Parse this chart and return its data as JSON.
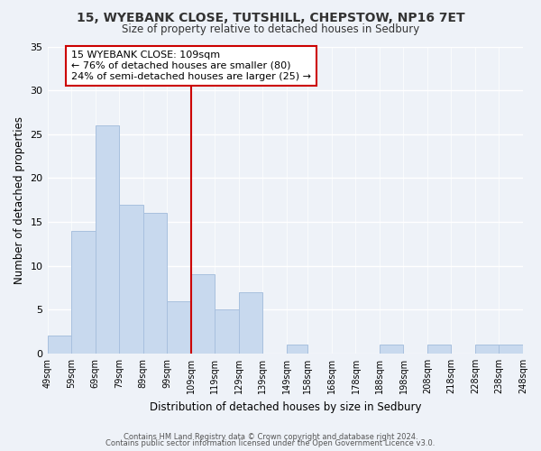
{
  "title1": "15, WYEBANK CLOSE, TUTSHILL, CHEPSTOW, NP16 7ET",
  "title2": "Size of property relative to detached houses in Sedbury",
  "xlabel": "Distribution of detached houses by size in Sedbury",
  "ylabel": "Number of detached properties",
  "bin_edges": [
    49,
    59,
    69,
    79,
    89,
    99,
    109,
    119,
    129,
    139,
    149,
    158,
    168,
    178,
    188,
    198,
    208,
    218,
    228,
    238,
    248
  ],
  "bar_heights": [
    2,
    14,
    26,
    17,
    16,
    6,
    9,
    5,
    7,
    0,
    1,
    0,
    0,
    0,
    1,
    0,
    1,
    0,
    1,
    1
  ],
  "tick_labels": [
    "49sqm",
    "59sqm",
    "69sqm",
    "79sqm",
    "89sqm",
    "99sqm",
    "109sqm",
    "119sqm",
    "129sqm",
    "139sqm",
    "149sqm",
    "158sqm",
    "168sqm",
    "178sqm",
    "188sqm",
    "198sqm",
    "208sqm",
    "218sqm",
    "228sqm",
    "238sqm",
    "248sqm"
  ],
  "bar_color": "#c8d9ee",
  "bar_edge_color": "#a8c0de",
  "vline_x": 109,
  "vline_color": "#cc0000",
  "ylim": [
    0,
    35
  ],
  "yticks": [
    0,
    5,
    10,
    15,
    20,
    25,
    30,
    35
  ],
  "annotation_title": "15 WYEBANK CLOSE: 109sqm",
  "annotation_line1": "← 76% of detached houses are smaller (80)",
  "annotation_line2": "24% of semi-detached houses are larger (25) →",
  "annotation_box_color": "#ffffff",
  "annotation_box_edge": "#cc0000",
  "footer1": "Contains HM Land Registry data © Crown copyright and database right 2024.",
  "footer2": "Contains public sector information licensed under the Open Government Licence v3.0.",
  "background_color": "#eef2f8"
}
